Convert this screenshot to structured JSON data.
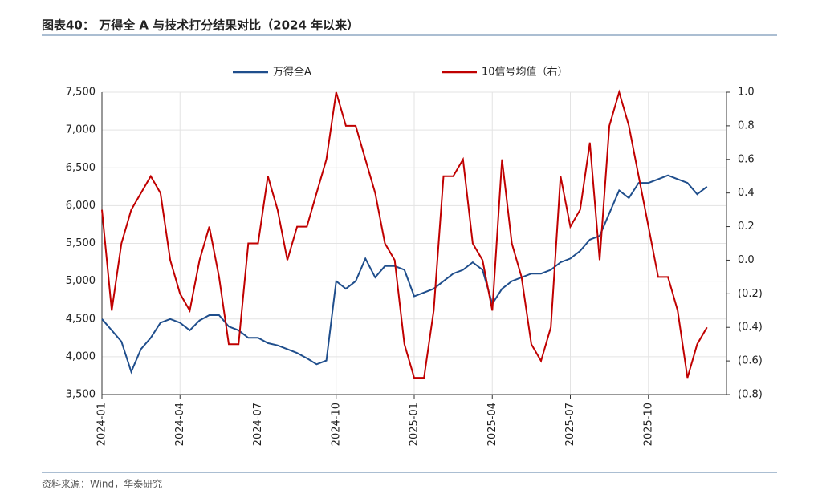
{
  "header": {
    "title": "图表40：  万得全 A 与技术打分结果对比（2024 年以来）"
  },
  "footer": {
    "source": "资料来源：Wind，华泰研究"
  },
  "chart_data": {
    "type": "line",
    "categories": [
      "2024-01",
      null,
      null,
      null,
      null,
      null,
      null,
      null,
      "2024-04",
      null,
      null,
      null,
      null,
      null,
      null,
      null,
      "2024-07",
      null,
      null,
      null,
      null,
      null,
      null,
      null,
      "2024-10",
      null,
      null,
      null,
      null,
      null,
      null,
      null,
      "2025-01",
      null,
      null,
      null,
      null,
      null,
      null,
      null,
      "2025-04",
      null,
      null,
      null,
      null,
      null,
      null,
      null,
      "2025-07",
      null,
      null,
      null,
      null,
      null,
      null,
      null,
      "2025-10",
      null,
      null,
      null,
      null,
      null,
      null
    ],
    "series": [
      {
        "name": "万得全A",
        "color": "#1f4e8c",
        "values": [
          4500,
          4350,
          4200,
          3800,
          4100,
          4250,
          4450,
          4500,
          4450,
          4350,
          4480,
          4550,
          4550,
          4400,
          4350,
          4250,
          4250,
          4180,
          4150,
          4100,
          4050,
          3980,
          3900,
          3950,
          5000,
          4900,
          5000,
          5300,
          5050,
          5200,
          5200,
          5150,
          4800,
          4850,
          4900,
          5000,
          5100,
          5150,
          5250,
          5150,
          4700,
          4900,
          5000,
          5050,
          5100,
          5100,
          5150,
          5250,
          5300,
          5400,
          5550,
          5600,
          5900,
          6200,
          6100,
          6300,
          6300,
          6350,
          6400,
          6350,
          6300,
          6150,
          6250
        ]
      },
      {
        "name": "10信号均值（右）",
        "color": "#c00000",
        "axis": "y2",
        "values": [
          0.3,
          -0.3,
          0.1,
          0.3,
          0.4,
          0.5,
          0.4,
          0.0,
          -0.2,
          -0.3,
          0.0,
          0.2,
          -0.1,
          -0.5,
          -0.5,
          0.1,
          0.1,
          0.5,
          0.3,
          0.0,
          0.2,
          0.2,
          0.4,
          0.6,
          1.0,
          0.8,
          0.8,
          0.6,
          0.4,
          0.1,
          0.0,
          -0.5,
          -0.7,
          -0.7,
          -0.3,
          0.5,
          0.5,
          0.6,
          0.1,
          0.0,
          -0.3,
          0.6,
          0.1,
          -0.1,
          -0.5,
          -0.6,
          -0.4,
          0.5,
          0.2,
          0.3,
          0.7,
          0.0,
          0.8,
          1.0,
          0.8,
          0.5,
          0.2,
          -0.1,
          -0.1,
          -0.3,
          -0.7,
          -0.5,
          -0.4
        ]
      }
    ],
    "ylim": [
      3500,
      7500
    ],
    "yticks": [
      {
        "value": 3500,
        "label": "3,500"
      },
      {
        "value": 4000,
        "label": "4,000"
      },
      {
        "value": 4500,
        "label": "4,500"
      },
      {
        "value": 5000,
        "label": "5,000"
      },
      {
        "value": 5500,
        "label": "5,500"
      },
      {
        "value": 6000,
        "label": "6,000"
      },
      {
        "value": 6500,
        "label": "6,500"
      },
      {
        "value": 7000,
        "label": "7,000"
      },
      {
        "value": 7500,
        "label": "7,500"
      }
    ],
    "y2lim": [
      -0.8,
      1.0
    ],
    "y2ticks": [
      {
        "value": -0.8,
        "label": "(0.8)"
      },
      {
        "value": -0.6,
        "label": "(0.6)"
      },
      {
        "value": -0.4,
        "label": "(0.4)"
      },
      {
        "value": -0.2,
        "label": "(0.2)"
      },
      {
        "value": 0,
        "label": "0.0"
      },
      0.2,
      0.4,
      0.6,
      0.8,
      {
        "value": 1,
        "label": "1.0"
      }
    ],
    "grid": true
  }
}
